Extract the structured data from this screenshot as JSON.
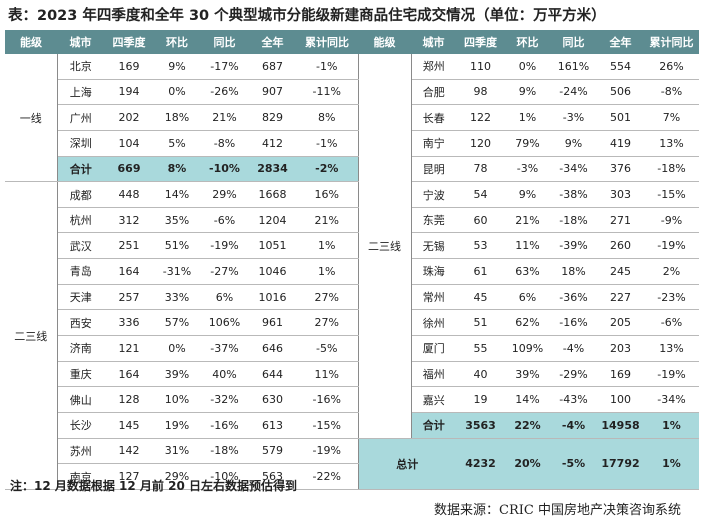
{
  "title": "表：2023 年四季度和全年 30 个典型城市分能级新建商品住宅成交情况（单位：万平方米）",
  "headers": [
    "能级",
    "城市",
    "四季度",
    "环比",
    "同比",
    "全年",
    "累计同比"
  ],
  "tiers": {
    "tier1": "一线",
    "tier23": "二三线"
  },
  "left_rows": [
    [
      "北京",
      "169",
      "9%",
      "-17%",
      "687",
      "-1%"
    ],
    [
      "上海",
      "194",
      "0%",
      "-26%",
      "907",
      "-11%"
    ],
    [
      "广州",
      "202",
      "18%",
      "21%",
      "829",
      "8%"
    ],
    [
      "深圳",
      "104",
      "5%",
      "-8%",
      "412",
      "-1%"
    ],
    [
      "合计",
      "669",
      "8%",
      "-10%",
      "2834",
      "-2%"
    ],
    [
      "成都",
      "448",
      "14%",
      "29%",
      "1668",
      "16%"
    ],
    [
      "杭州",
      "312",
      "35%",
      "-6%",
      "1204",
      "21%"
    ],
    [
      "武汉",
      "251",
      "51%",
      "-19%",
      "1051",
      "1%"
    ],
    [
      "青岛",
      "164",
      "-31%",
      "-27%",
      "1046",
      "1%"
    ],
    [
      "天津",
      "257",
      "33%",
      "6%",
      "1016",
      "27%"
    ],
    [
      "西安",
      "336",
      "57%",
      "106%",
      "961",
      "27%"
    ],
    [
      "济南",
      "121",
      "0%",
      "-37%",
      "646",
      "-5%"
    ],
    [
      "重庆",
      "164",
      "39%",
      "40%",
      "644",
      "11%"
    ],
    [
      "佛山",
      "128",
      "10%",
      "-32%",
      "630",
      "-16%"
    ],
    [
      "长沙",
      "145",
      "19%",
      "-16%",
      "613",
      "-15%"
    ],
    [
      "苏州",
      "142",
      "31%",
      "-18%",
      "579",
      "-19%"
    ],
    [
      "南京",
      "127",
      "29%",
      "-10%",
      "563",
      "-22%"
    ]
  ],
  "right_rows": [
    [
      "郑州",
      "110",
      "0%",
      "161%",
      "554",
      "26%"
    ],
    [
      "合肥",
      "98",
      "9%",
      "-24%",
      "506",
      "-8%"
    ],
    [
      "长春",
      "122",
      "1%",
      "-3%",
      "501",
      "7%"
    ],
    [
      "南宁",
      "120",
      "79%",
      "9%",
      "419",
      "13%"
    ],
    [
      "昆明",
      "78",
      "-3%",
      "-34%",
      "376",
      "-18%"
    ],
    [
      "宁波",
      "54",
      "9%",
      "-38%",
      "303",
      "-15%"
    ],
    [
      "东莞",
      "60",
      "21%",
      "-18%",
      "271",
      "-9%"
    ],
    [
      "无锡",
      "53",
      "11%",
      "-39%",
      "260",
      "-19%"
    ],
    [
      "珠海",
      "61",
      "63%",
      "18%",
      "245",
      "2%"
    ],
    [
      "常州",
      "45",
      "6%",
      "-36%",
      "227",
      "-23%"
    ],
    [
      "徐州",
      "51",
      "62%",
      "-16%",
      "205",
      "-6%"
    ],
    [
      "厦门",
      "55",
      "109%",
      "-4%",
      "203",
      "13%"
    ],
    [
      "福州",
      "40",
      "39%",
      "-29%",
      "169",
      "-19%"
    ],
    [
      "嘉兴",
      "19",
      "14%",
      "-43%",
      "100",
      "-34%"
    ],
    [
      "合计",
      "3563",
      "22%",
      "-4%",
      "14958",
      "1%"
    ]
  ],
  "total_row": {
    "label": "总计",
    "values": [
      "4232",
      "20%",
      "-5%",
      "17792",
      "1%"
    ]
  },
  "note": "注：12 月数据根据 12 月前 20 日左右数据预估得到",
  "source": "数据来源：CRIC 中国房地产决策咨询系统",
  "colors": {
    "header_bg": "#5d8c91",
    "sum_bg": "#a9d9dc"
  }
}
